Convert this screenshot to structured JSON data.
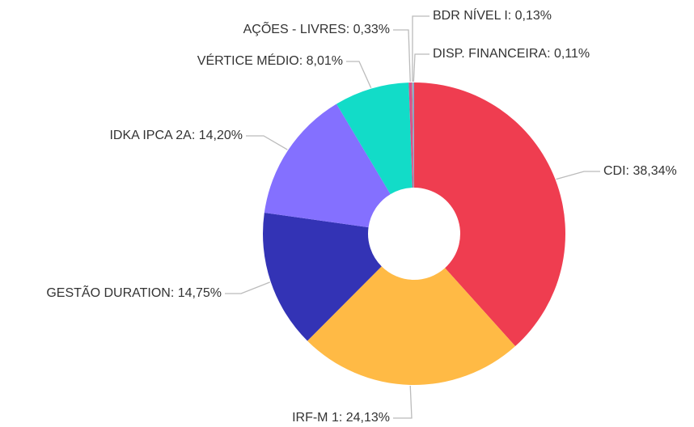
{
  "chart_data": {
    "type": "pie",
    "values": [
      38.34,
      24.13,
      14.75,
      14.2,
      8.01,
      0.33,
      0.13,
      0.11
    ],
    "value_labels": [
      "CDI: 38,34%",
      "IRF-M 1: 24,13%",
      "GESTÃO DURATION: 14,75%",
      "IDKA IPCA 2A: 14,20%",
      "VÉRTICE MÉDIO: 8,01%",
      "AÇÕES - LIVRES: 0,33%",
      "BDR NÍVEL I: 0,13%",
      "DISP. FINANCEIRA: 0,11%"
    ],
    "colors": [
      "#ef3d50",
      "#ffba45",
      "#3333b5",
      "#8470ff",
      "#12dcc8",
      "#d9508a",
      "#a0a0a0",
      "#7aa7d9"
    ]
  }
}
